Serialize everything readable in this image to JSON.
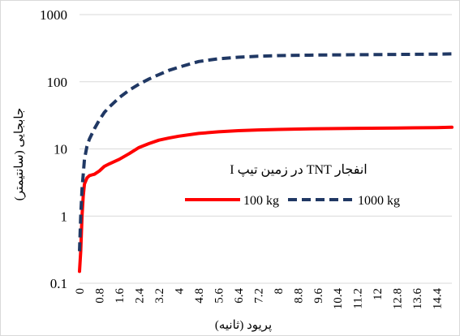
{
  "chart_data": {
    "type": "line",
    "title": "انفجار TNT در زمین تیپ I",
    "xlabel": "پریود (ثانیه)",
    "ylabel": "جابجایی (سانتیمتر)",
    "y_scale": "log",
    "ylim": [
      0.1,
      1000
    ],
    "xlim": [
      0,
      15
    ],
    "y_ticks": [
      "0.1",
      "1",
      "10",
      "100",
      "1000"
    ],
    "x_ticks": [
      "0",
      "0.8",
      "1.6",
      "2.4",
      "3.2",
      "4",
      "4.8",
      "5.6",
      "6.4",
      "7.2",
      "8",
      "8.8",
      "9.6",
      "10.4",
      "11.2",
      "12",
      "12.8",
      "13.6",
      "14.4"
    ],
    "grid": "horizontal",
    "legend": "inside-right",
    "series": [
      {
        "name": "100 kg",
        "color": "#ff0000",
        "style": "solid",
        "x": [
          0.0,
          0.05,
          0.1,
          0.15,
          0.2,
          0.3,
          0.4,
          0.5,
          0.6,
          0.8,
          1.0,
          1.2,
          1.6,
          2.0,
          2.4,
          2.8,
          3.2,
          3.6,
          4.0,
          4.8,
          5.6,
          6.4,
          7.2,
          8.0,
          9.6,
          11.2,
          12.8,
          14.4,
          15.0
        ],
        "y": [
          0.15,
          0.3,
          1.0,
          2.0,
          3.0,
          3.7,
          4.0,
          4.1,
          4.2,
          4.7,
          5.5,
          6.0,
          7.0,
          8.5,
          10.5,
          12.0,
          13.5,
          14.5,
          15.5,
          17.0,
          18.0,
          18.7,
          19.2,
          19.5,
          20.0,
          20.3,
          20.5,
          20.8,
          21.0
        ]
      },
      {
        "name": "1000 kg",
        "color": "#203864",
        "style": "dashed",
        "x": [
          0.0,
          0.05,
          0.1,
          0.2,
          0.3,
          0.4,
          0.6,
          0.8,
          1.0,
          1.2,
          1.6,
          2.0,
          2.4,
          2.8,
          3.2,
          3.6,
          4.0,
          4.8,
          5.6,
          6.4,
          7.2,
          8.0,
          9.6,
          11.2,
          12.8,
          14.4,
          15.0
        ],
        "y": [
          0.3,
          1.0,
          2.5,
          7.0,
          11.0,
          14.0,
          20.0,
          27.0,
          35.0,
          42.0,
          58.0,
          75.0,
          92.0,
          110.0,
          128.0,
          148.0,
          165.0,
          200.0,
          220.0,
          232.0,
          240.0,
          245.0,
          250.0,
          253.0,
          255.0,
          258.0,
          260.0
        ]
      }
    ]
  }
}
